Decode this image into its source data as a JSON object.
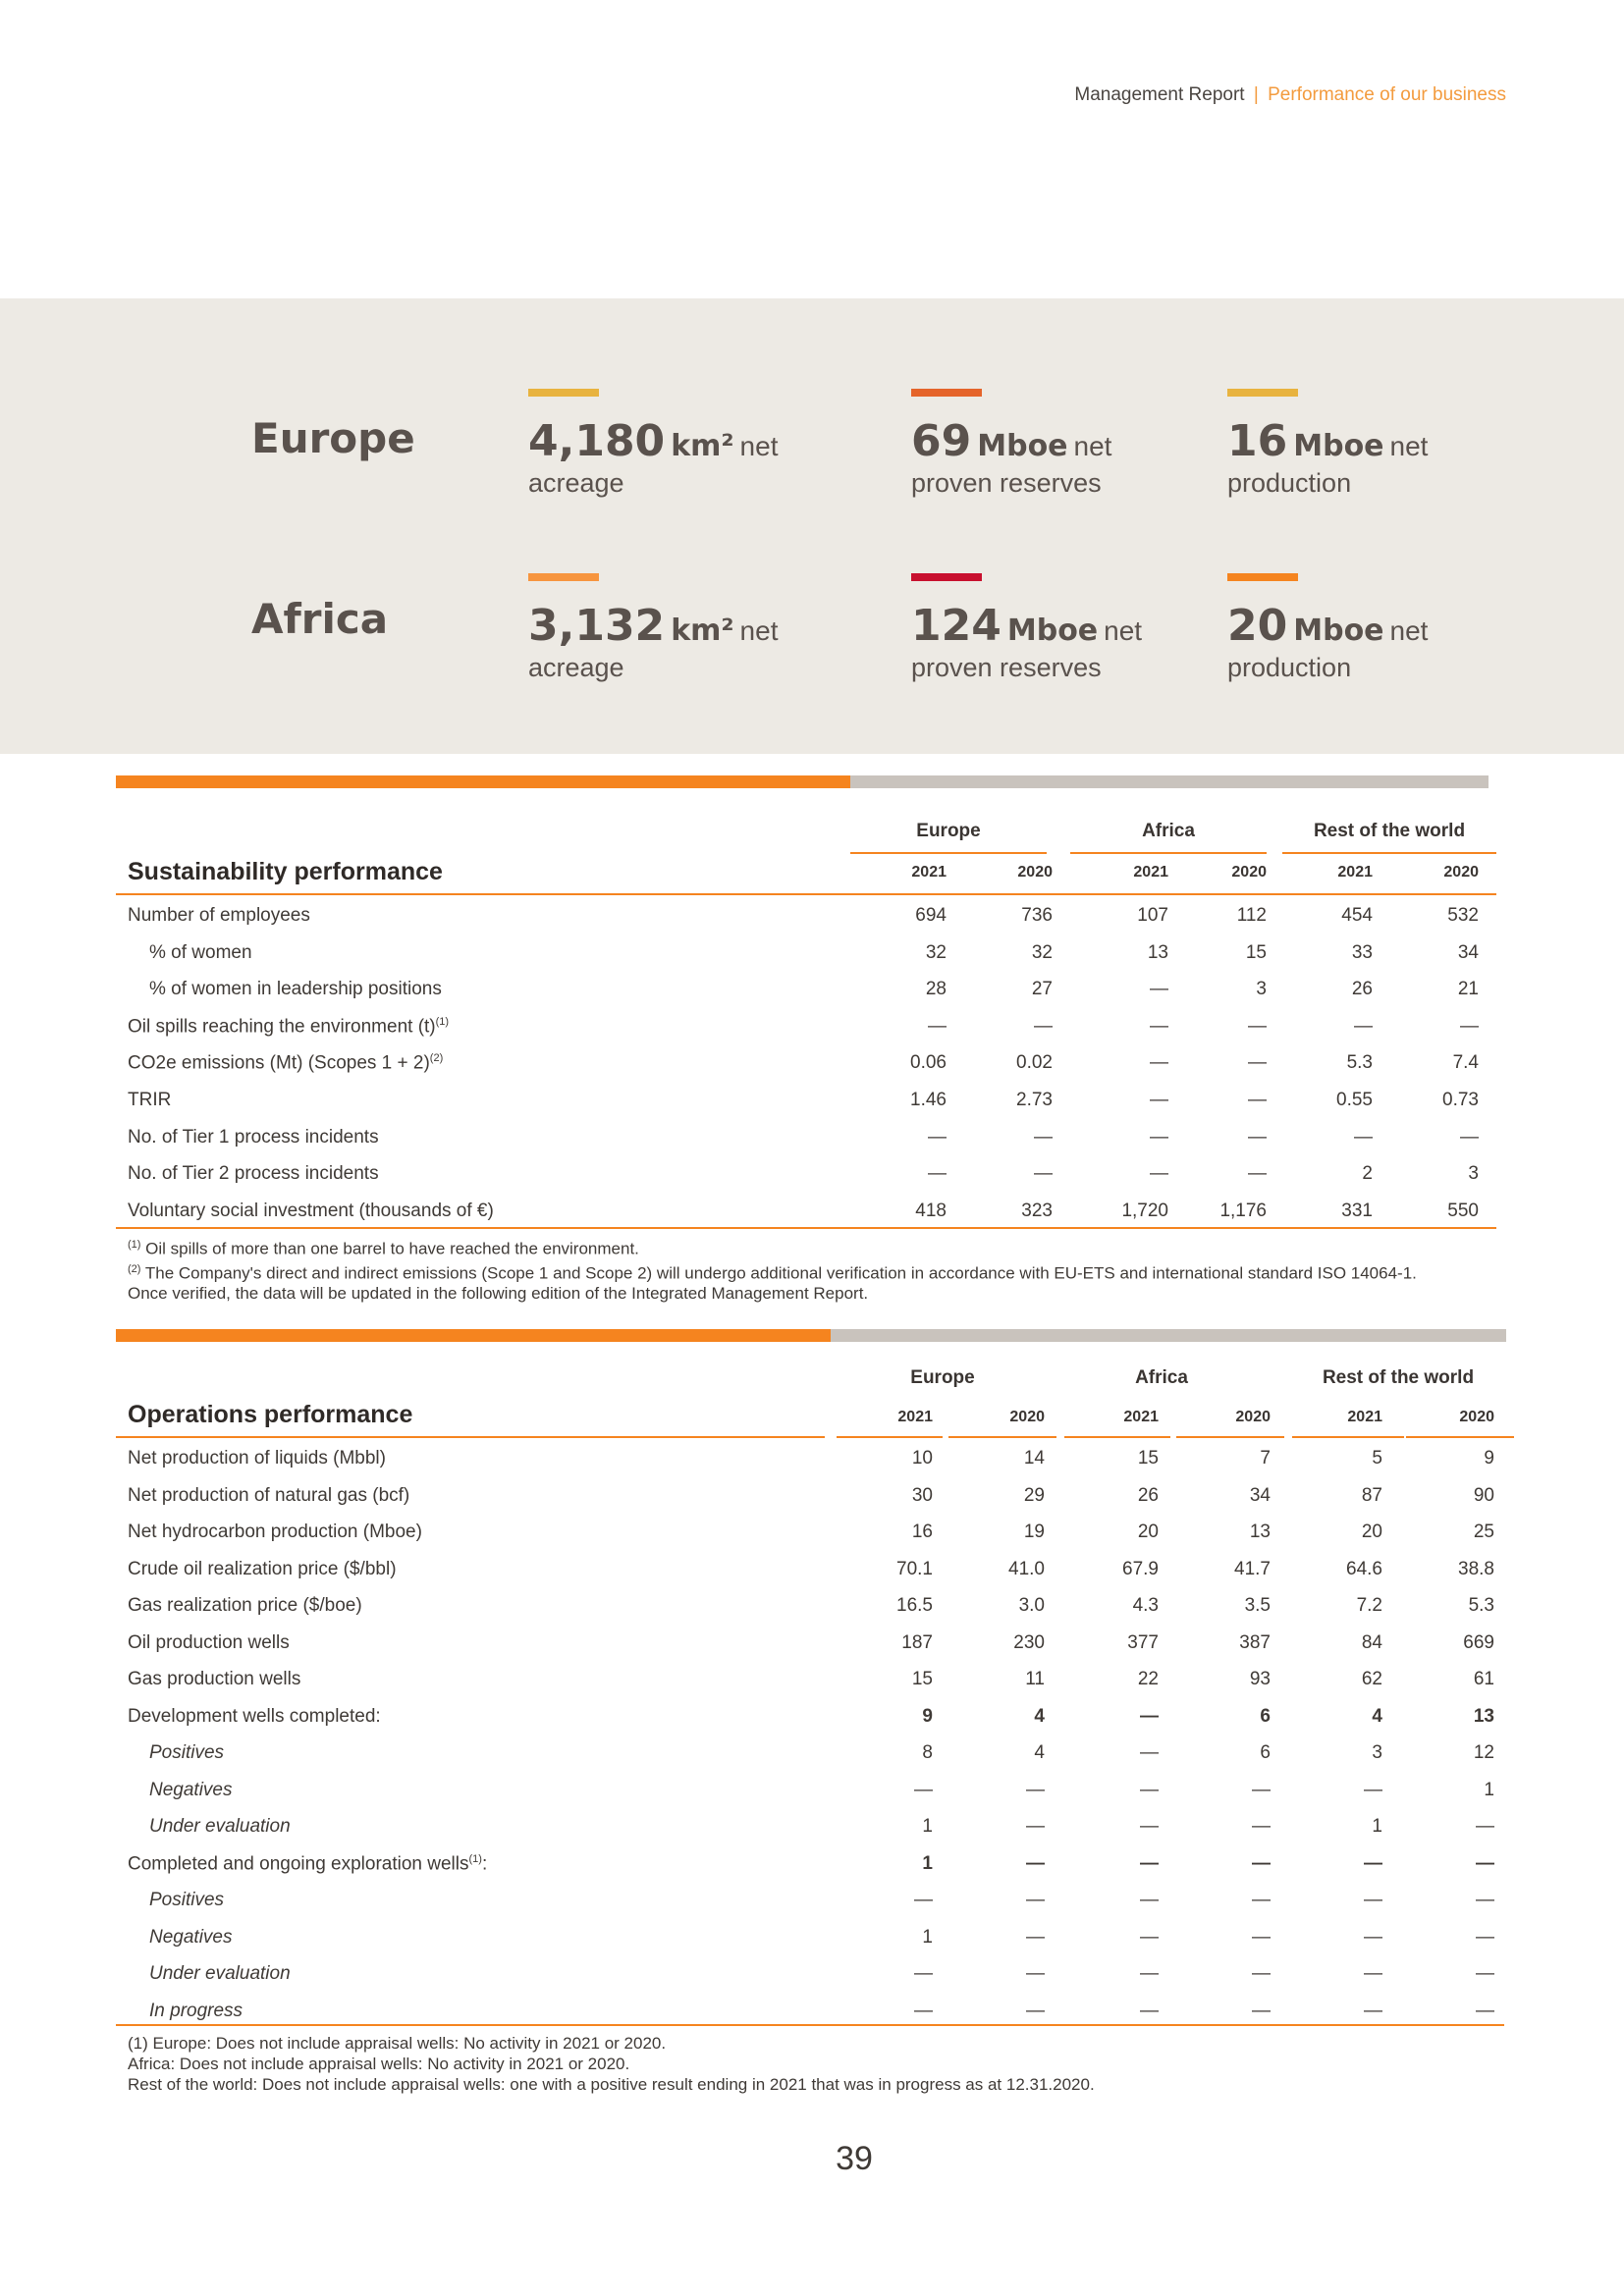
{
  "header": {
    "report": "Management Report",
    "separator": "|",
    "section": "Performance of our business"
  },
  "colors": {
    "accent": "#f5841f",
    "band": "#edeae4",
    "grey_stripe": "#c9c3bd"
  },
  "kpis": {
    "europe": {
      "name": "Europe",
      "items": [
        {
          "value": "4,180",
          "unit": "km²",
          "suffix": "net",
          "line2": "acreage",
          "bar_color": "#e8b33f"
        },
        {
          "value": "69",
          "unit": "Mboe",
          "suffix": "net",
          "line2": "proven reserves",
          "bar_color": "#e5642a"
        },
        {
          "value": "16",
          "unit": "Mboe",
          "suffix": "net",
          "line2": "production",
          "bar_color": "#e8b33f"
        }
      ]
    },
    "africa": {
      "name": "Africa",
      "items": [
        {
          "value": "3,132",
          "unit": "km²",
          "suffix": "net",
          "line2": "acreage",
          "bar_color": "#f7953e"
        },
        {
          "value": "124",
          "unit": "Mboe",
          "suffix": "net",
          "line2": "proven reserves",
          "bar_color": "#c8102e"
        },
        {
          "value": "20",
          "unit": "Mboe",
          "suffix": "net",
          "line2": "production",
          "bar_color": "#f5841f"
        }
      ]
    }
  },
  "sustainability": {
    "title": "Sustainability performance",
    "groups": [
      "Europe",
      "Africa",
      "Rest of the world"
    ],
    "years": [
      "2021",
      "2020",
      "2021",
      "2020",
      "2021",
      "2020"
    ],
    "rows": [
      {
        "label": "Number of employees",
        "values": [
          "694",
          "736",
          "107",
          "112",
          "454",
          "532"
        ]
      },
      {
        "label": "% of women",
        "values": [
          "32",
          "32",
          "13",
          "15",
          "33",
          "34"
        ]
      },
      {
        "label": "% of women in leadership positions",
        "values": [
          "28",
          "27",
          "—",
          "3",
          "26",
          "21"
        ]
      },
      {
        "label": "Oil spills reaching the environment (t)",
        "sup": "(1)",
        "values": [
          "—",
          "—",
          "—",
          "—",
          "—",
          "—"
        ]
      },
      {
        "label": "CO2e emissions (Mt)  (Scopes 1 + 2)",
        "sup": "(2)",
        "values": [
          "0.06",
          "0.02",
          "—",
          "—",
          "5.3",
          "7.4"
        ]
      },
      {
        "label": "TRIR",
        "values": [
          "1.46",
          "2.73",
          "—",
          "—",
          "0.55",
          "0.73"
        ]
      },
      {
        "label": "No. of Tier 1 process incidents",
        "values": [
          "—",
          "—",
          "—",
          "—",
          "—",
          "—"
        ]
      },
      {
        "label": "No. of Tier 2 process incidents",
        "values": [
          "—",
          "—",
          "—",
          "—",
          "2",
          "3"
        ]
      },
      {
        "label": "Voluntary social investment (thousands of €)",
        "values": [
          "418",
          "323",
          "1,720",
          "1,176",
          "331",
          "550"
        ]
      }
    ],
    "notes": [
      {
        "mark": "(1)",
        "text": "Oil spills of more than one barrel to have reached the environment."
      },
      {
        "mark": "(2)",
        "text": "The Company's direct and indirect emissions (Scope 1 and Scope 2) will undergo additional verification in accordance with  EU-ETS and international standard  ISO 14064-1."
      },
      {
        "mark": "",
        "text": "Once verified, the data will be updated in the following edition of the Integrated Management Report."
      }
    ]
  },
  "operations": {
    "title": "Operations performance",
    "groups": [
      "Europe",
      "Africa",
      "Rest of the world"
    ],
    "years": [
      "2021",
      "2020",
      "2021",
      "2020",
      "2021",
      "2020"
    ],
    "rows": [
      {
        "label": "Net production of liquids (Mbbl)",
        "values": [
          "10",
          "14",
          "15",
          "7",
          "5",
          "9"
        ]
      },
      {
        "label": "Net production of natural gas (bcf)",
        "values": [
          "30",
          "29",
          "26",
          "34",
          "87",
          "90"
        ]
      },
      {
        "label": "Net hydrocarbon production (Mboe)",
        "values": [
          "16",
          "19",
          "20",
          "13",
          "20",
          "25"
        ]
      },
      {
        "label": "Crude oil realization price ($/bbl)",
        "values": [
          "70.1",
          "41.0",
          "67.9",
          "41.7",
          "64.6",
          "38.8"
        ]
      },
      {
        "label": "Gas realization price ($/boe)",
        "values": [
          "16.5",
          "3.0",
          "4.3",
          "3.5",
          "7.2",
          "5.3"
        ]
      },
      {
        "label": "Oil production wells",
        "values": [
          "187",
          "230",
          "377",
          "387",
          "84",
          "669"
        ]
      },
      {
        "label": "Gas production wells",
        "values": [
          "15",
          "11",
          "22",
          "93",
          "62",
          "61"
        ]
      },
      {
        "label": "Development wells completed:",
        "values": [
          "9",
          "4",
          "—",
          "6",
          "4",
          "13"
        ],
        "bold": true
      },
      {
        "label": "Positives",
        "values": [
          "8",
          "4",
          "—",
          "6",
          "3",
          "12"
        ],
        "italic": true
      },
      {
        "label": "Negatives",
        "values": [
          "—",
          "—",
          "—",
          "—",
          "—",
          "1"
        ],
        "italic": true
      },
      {
        "label": "Under evaluation",
        "values": [
          "1",
          "—",
          "—",
          "—",
          "1",
          "—"
        ],
        "italic": true
      },
      {
        "label": "Completed and ongoing exploration wells",
        "sup": "(1)",
        "suffix": ":",
        "values": [
          "1",
          "—",
          "—",
          "—",
          "—",
          "—"
        ],
        "bold": true
      },
      {
        "label": "Positives",
        "values": [
          "—",
          "—",
          "—",
          "—",
          "—",
          "—"
        ],
        "italic": true
      },
      {
        "label": "Negatives",
        "values": [
          "1",
          "—",
          "—",
          "—",
          "—",
          "—"
        ],
        "italic": true
      },
      {
        "label": "Under evaluation",
        "values": [
          "—",
          "—",
          "—",
          "—",
          "—",
          "—"
        ],
        "italic": true
      },
      {
        "label": "In progress",
        "values": [
          "—",
          "—",
          "—",
          "—",
          "—",
          "—"
        ],
        "italic": true
      }
    ],
    "notes": [
      "(1) Europe: Does not include appraisal wells: No activity in 2021 or 2020.",
      "Africa: Does not include appraisal wells: No activity in 2021 or 2020.",
      "Rest of the world: Does not include appraisal wells: one with a positive result ending in 2021 that was in progress as at 12.31.2020."
    ]
  },
  "page_number": "39"
}
